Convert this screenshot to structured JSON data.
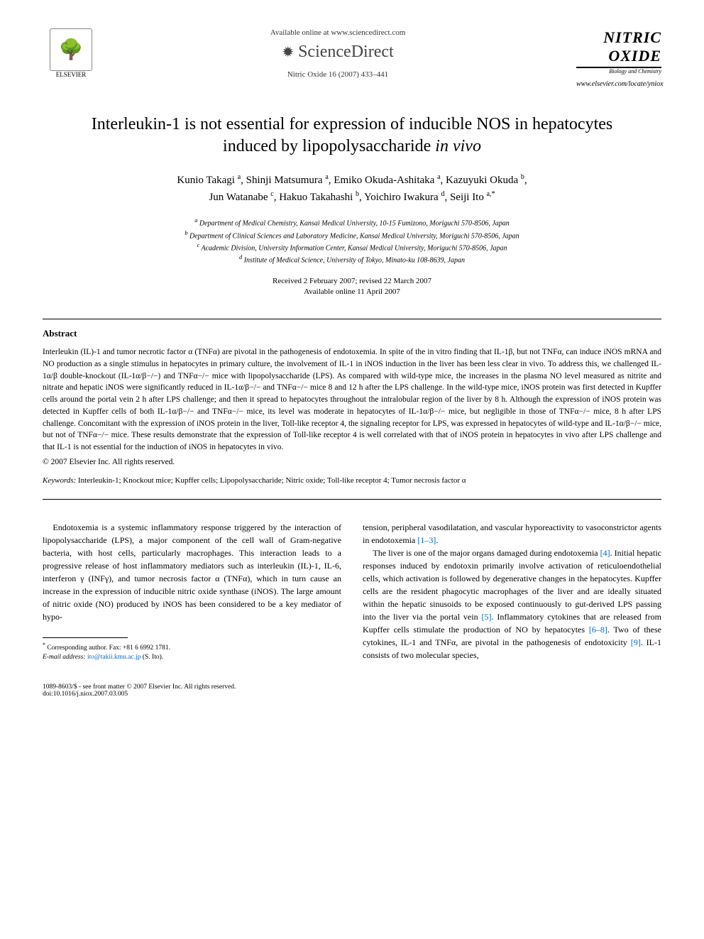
{
  "header": {
    "available_online": "Available online at www.sciencedirect.com",
    "sciencedirect": "ScienceDirect",
    "citation": "Nitric Oxide 16 (2007) 433–441",
    "elsevier_label": "ELSEVIER",
    "journal_name_1": "NITRIC",
    "journal_name_2": "OXIDE",
    "journal_tagline": "Biology and Chemistry",
    "journal_url": "www.elsevier.com/locate/yniox"
  },
  "title": "Interleukin-1 is not essential for expression of inducible NOS in hepatocytes induced by lipopolysaccharide in vivo",
  "authors_html": "Kunio Takagi <sup>a</sup>, Shinji Matsumura <sup>a</sup>, Emiko Okuda-Ashitaka <sup>a</sup>, Kazuyuki Okuda <sup>b</sup>, Jun Watanabe <sup>c</sup>, Hakuo Takahashi <sup>b</sup>, Yoichiro Iwakura <sup>d</sup>, Seiji Ito <sup>a,*</sup>",
  "affiliations": {
    "a": "Department of Medical Chemistry, Kansai Medical University, 10-15 Fumizono, Moriguchi 570-8506, Japan",
    "b": "Department of Clinical Sciences and Laboratory Medicine, Kansai Medical University, Moriguchi 570-8506, Japan",
    "c": "Academic Division, University Information Center, Kansai Medical University, Moriguchi 570-8506, Japan",
    "d": "Institute of Medical Science, University of Tokyo, Minato-ku 108-8639, Japan"
  },
  "dates": {
    "received": "Received 2 February 2007; revised 22 March 2007",
    "online": "Available online 11 April 2007"
  },
  "abstract": {
    "heading": "Abstract",
    "body": "Interleukin (IL)-1 and tumor necrotic factor α (TNFα) are pivotal in the pathogenesis of endotoxemia. In spite of the in vitro finding that IL-1β, but not TNFα, can induce iNOS mRNA and NO production as a single stimulus in hepatocytes in primary culture, the involvement of IL-1 in iNOS induction in the liver has been less clear in vivo. To address this, we challenged IL-1α/β double-knockout (IL-1α/β−/−) and TNFα−/− mice with lipopolysaccharide (LPS). As compared with wild-type mice, the increases in the plasma NO level measured as nitrite and nitrate and hepatic iNOS were significantly reduced in IL-1α/β−/− and TNFα−/− mice 8 and 12 h after the LPS challenge. In the wild-type mice, iNOS protein was first detected in Kupffer cells around the portal vein 2 h after LPS challenge; and then it spread to hepatocytes throughout the intralobular region of the liver by 8 h. Although the expression of iNOS protein was detected in Kupffer cells of both IL-1α/β−/− and TNFα−/− mice, its level was moderate in hepatocytes of IL-1α/β−/− mice, but negligible in those of TNFα−/− mice, 8 h after LPS challenge. Concomitant with the expression of iNOS protein in the liver, Toll-like receptor 4, the signaling receptor for LPS, was expressed in hepatocytes of wild-type and IL-1α/β−/− mice, but not of TNFα−/− mice. These results demonstrate that the expression of Toll-like receptor 4 is well correlated with that of iNOS protein in hepatocytes in vivo after LPS challenge and that IL-1 is not essential for the induction of iNOS in hepatocytes in vivo.",
    "copyright": "© 2007 Elsevier Inc. All rights reserved."
  },
  "keywords": {
    "label": "Keywords:",
    "text": "Interleukin-1; Knockout mice; Kupffer cells; Lipopolysaccharide; Nitric oxide; Toll-like receptor 4; Tumor necrosis factor α"
  },
  "body": {
    "col1": {
      "p1": "Endotoxemia is a systemic inflammatory response triggered by the interaction of lipopolysaccharide (LPS), a major component of the cell wall of Gram-negative bacteria, with host cells, particularly macrophages. This interaction leads to a progressive release of host inflammatory mediators such as interleukin (IL)-1, IL-6, interferon γ (INFγ), and tumor necrosis factor α (TNFα), which in turn cause an increase in the expression of inducible nitric oxide synthase (iNOS). The large amount of nitric oxide (NO) produced by iNOS has been considered to be a key mediator of hypo-"
    },
    "col2": {
      "p1_pre": "tension, peripheral vasodilatation, and vascular hyporeactivity to vasoconstrictor agents in endotoxemia ",
      "ref1": "[1–3]",
      "p1_post": ".",
      "p2_pre": "The liver is one of the major organs damaged during endotoxemia ",
      "ref2": "[4]",
      "p2_mid1": ". Initial hepatic responses induced by endotoxin primarily involve activation of reticuloendothelial cells, which activation is followed by degenerative changes in the hepatocytes. Kupffer cells are the resident phagocytic macrophages of the liver and are ideally situated within the hepatic sinusoids to be exposed continuously to gut-derived LPS passing into the liver via the portal vein ",
      "ref3": "[5]",
      "p2_mid2": ". Inflammatory cytokines that are released from Kupffer cells stimulate the production of NO by hepatocytes ",
      "ref4": "[6–8]",
      "p2_mid3": ". Two of these cytokines, IL-1 and TNFα, are pivotal in the pathogenesis of endotoxicity ",
      "ref5": "[9]",
      "p2_post": ". IL-1 consists of two molecular species,"
    }
  },
  "footnote": {
    "corresponding": "Corresponding author. Fax: +81 6 6992 1781.",
    "email_label": "E-mail address:",
    "email": "ito@takii.kmu.ac.jp",
    "email_paren": "(S. Ito)."
  },
  "footer": {
    "left1": "1089-8603/$ - see front matter © 2007 Elsevier Inc. All rights reserved.",
    "left2": "doi:10.1016/j.niox.2007.03.005"
  },
  "colors": {
    "text": "#000000",
    "link": "#0066cc",
    "background": "#ffffff"
  },
  "typography": {
    "title_fontsize": 24,
    "body_fontsize": 12,
    "abstract_fontsize": 11.5,
    "footnote_fontsize": 9.5
  }
}
